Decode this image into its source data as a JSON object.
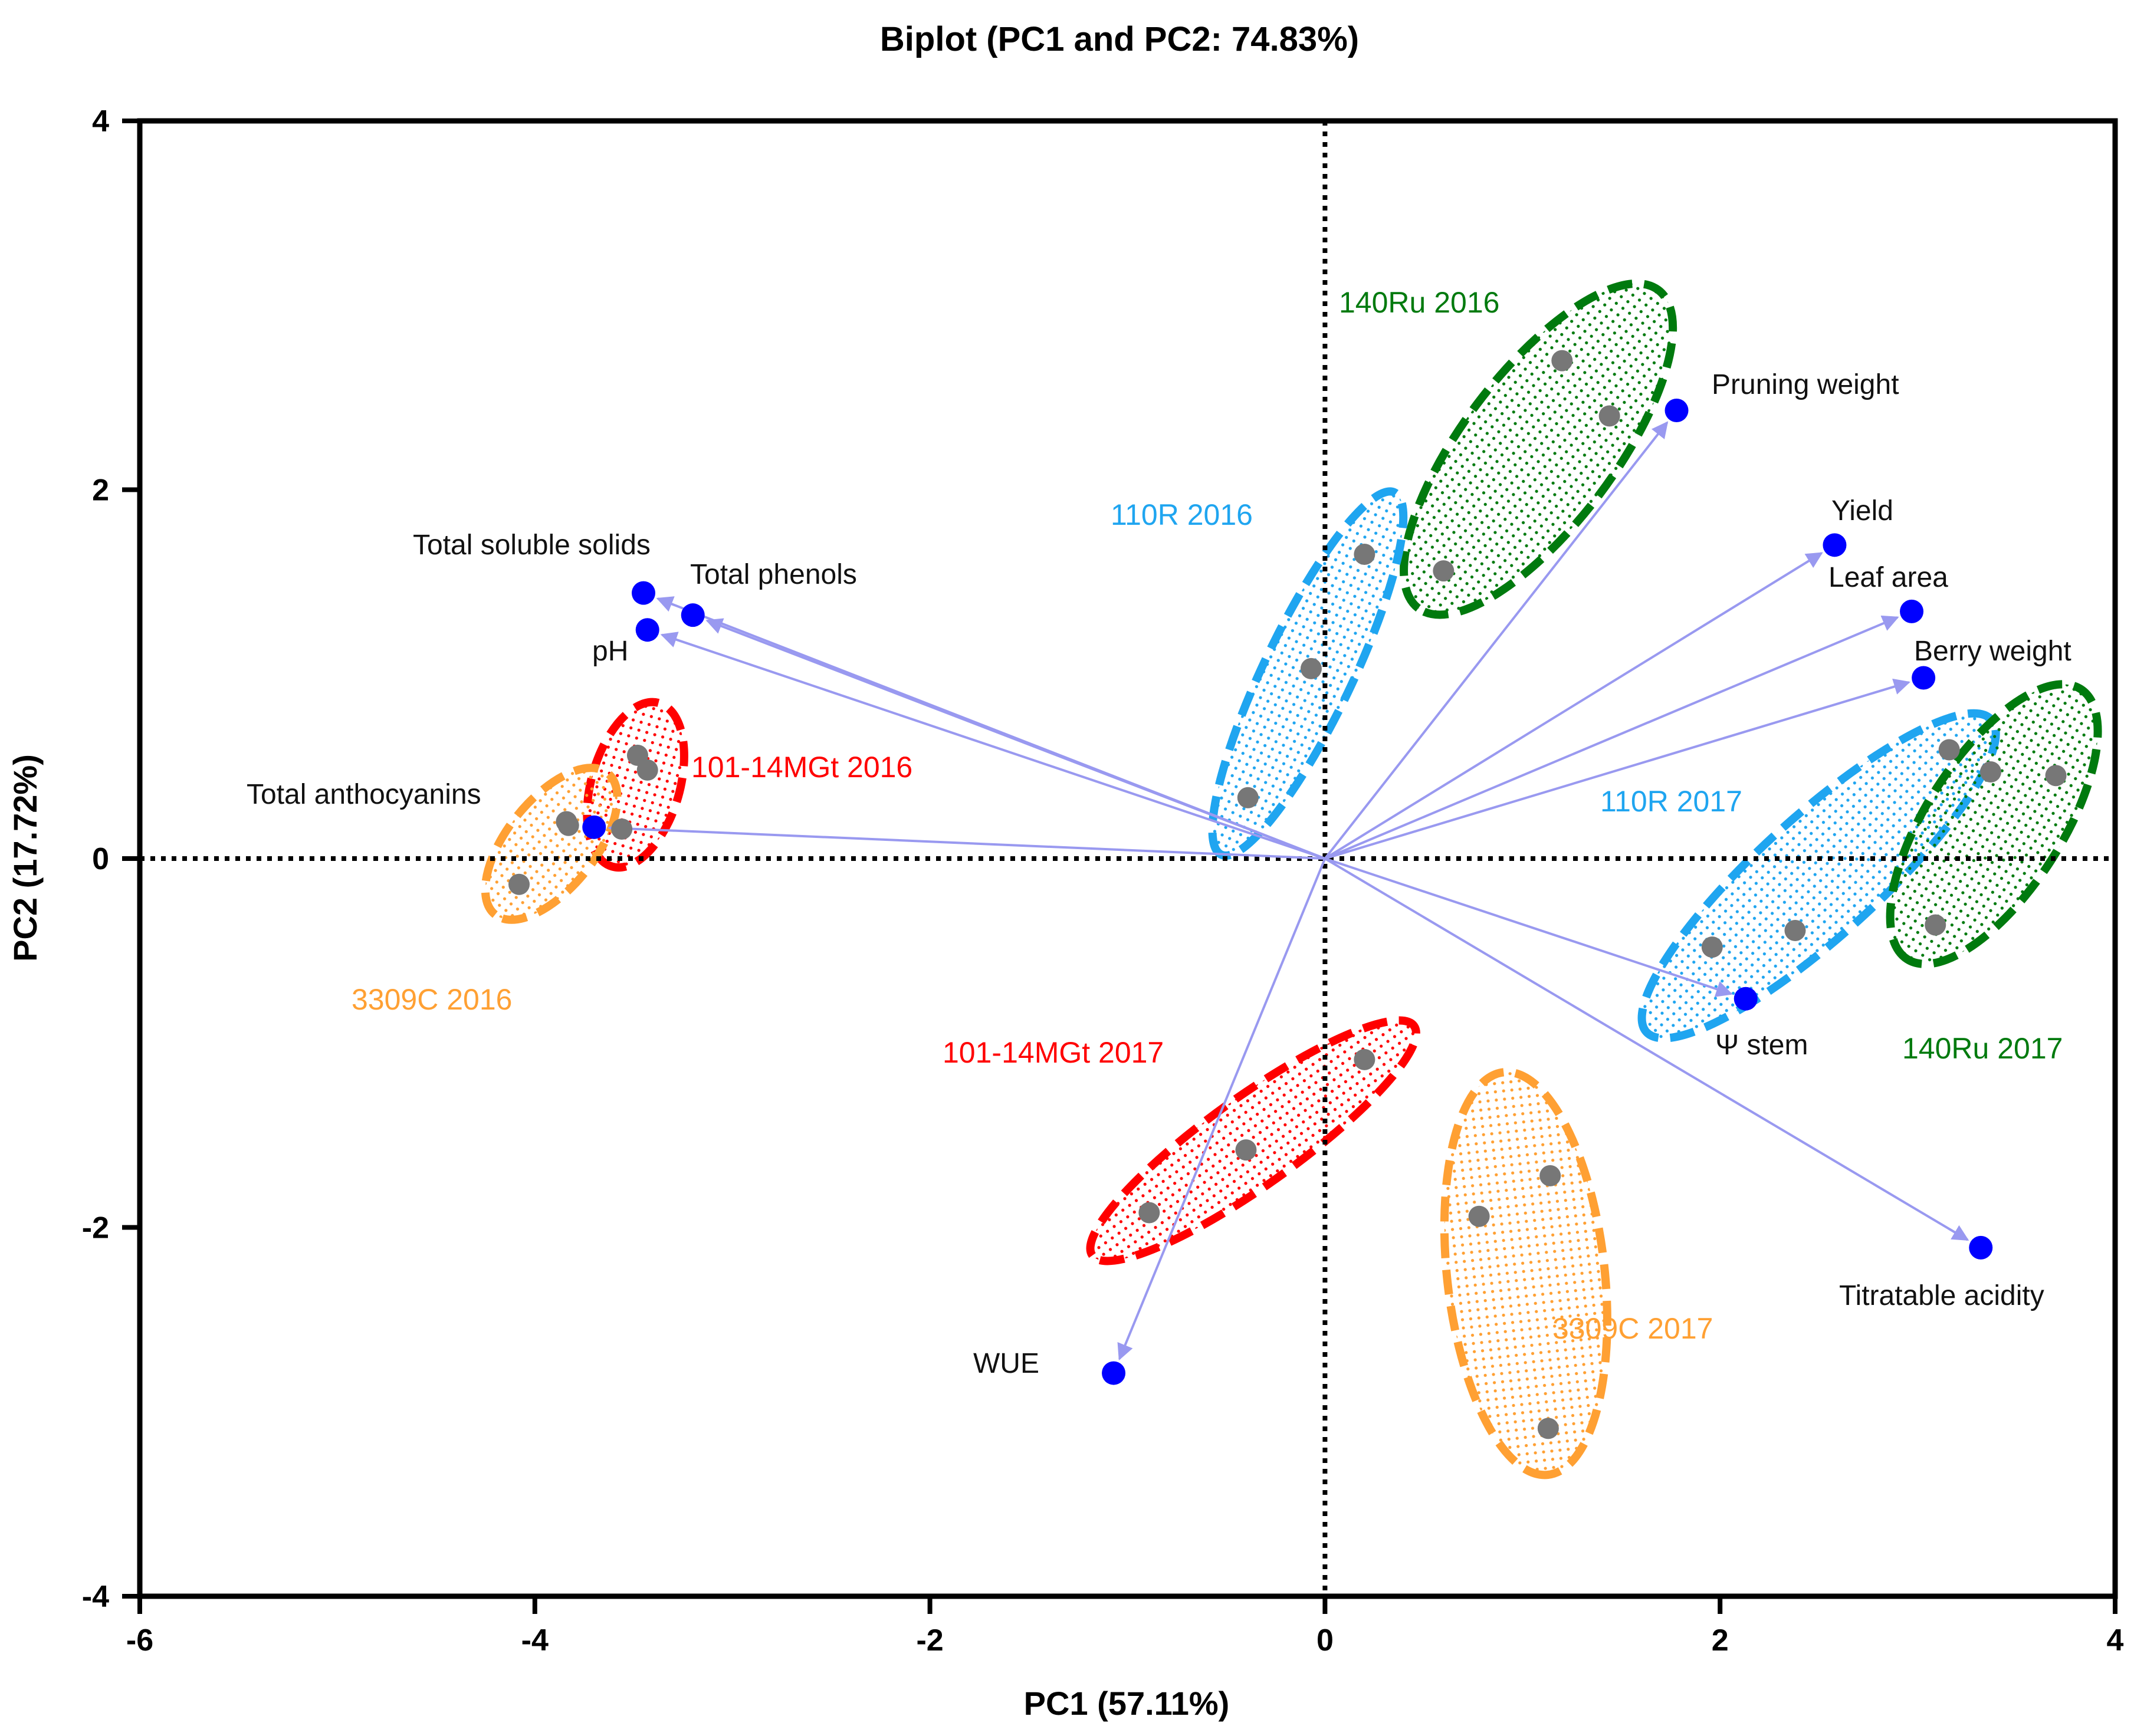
{
  "chart_data": {
    "type": "scatter",
    "subtype": "biplot",
    "title": "Biplot (PC1 and PC2: 74.83%)",
    "xlabel": "PC1 (57.11%)",
    "ylabel": "PC2 (17.72%)",
    "xlim": [
      -6,
      4
    ],
    "ylim": [
      -4,
      4
    ],
    "xticks": [
      -6,
      -4,
      -2,
      0,
      2,
      4
    ],
    "yticks": [
      -4,
      -2,
      0,
      2,
      4
    ],
    "x_tick_labels": [
      "-6",
      "-4",
      "-2",
      "0",
      "2",
      "4"
    ],
    "y_tick_labels": [
      "-4",
      "-2",
      "0",
      "2",
      "4"
    ],
    "grid": false,
    "reference_lines": "dotted lines at x = 0 and y = 0",
    "colors": {
      "axes": "#000000",
      "variable_points": "#0000ff",
      "vector_arrows": "#9999f0",
      "observation_points": "#777777",
      "red": "#ff0000",
      "green": "#007a0e",
      "light_blue": "#1fa5f0",
      "orange": "#ffa033"
    },
    "variables": [
      {
        "label": "Total soluble solids",
        "x": -3.45,
        "y": 1.44
      },
      {
        "label": "Total phenols",
        "x": -3.2,
        "y": 1.32
      },
      {
        "label": "pH",
        "x": -3.43,
        "y": 1.24
      },
      {
        "label": "Total anthocyanins",
        "x": -3.7,
        "y": 0.17
      },
      {
        "label": "Pruning weight",
        "x": 1.78,
        "y": 2.43
      },
      {
        "label": "Yield",
        "x": 2.58,
        "y": 1.7
      },
      {
        "label": "Leaf area",
        "x": 2.97,
        "y": 1.34
      },
      {
        "label": "Berry weight",
        "x": 3.03,
        "y": 0.98
      },
      {
        "label": "Ψ stem",
        "x": 2.13,
        "y": -0.76
      },
      {
        "label": "Titratable acidity",
        "x": 3.32,
        "y": -2.11
      },
      {
        "label": "WUE",
        "x": -1.07,
        "y": -2.79
      }
    ],
    "groups": [
      {
        "name": "140Ru 2016",
        "color": "green",
        "points": [
          [
            1.2,
            2.7
          ],
          [
            1.44,
            2.4
          ],
          [
            0.6,
            1.56
          ]
        ]
      },
      {
        "name": "110R 2016",
        "color": "light_blue",
        "points": [
          [
            0.2,
            1.65
          ],
          [
            -0.07,
            1.03
          ],
          [
            -0.39,
            0.33
          ]
        ]
      },
      {
        "name": "101-14MGt 2016",
        "color": "red",
        "points": [
          [
            -3.48,
            0.56
          ],
          [
            -3.43,
            0.48
          ],
          [
            -3.56,
            0.16
          ]
        ]
      },
      {
        "name": "3309C 2016",
        "color": "orange",
        "points": [
          [
            -3.84,
            0.2
          ],
          [
            -3.83,
            0.18
          ],
          [
            -4.08,
            -0.14
          ]
        ]
      },
      {
        "name": "110R 2017",
        "color": "light_blue",
        "points": [
          [
            3.16,
            0.59
          ],
          [
            2.38,
            -0.39
          ],
          [
            1.96,
            -0.48
          ]
        ]
      },
      {
        "name": "140Ru 2017",
        "color": "green",
        "points": [
          [
            3.37,
            0.47
          ],
          [
            3.7,
            0.45
          ],
          [
            3.09,
            -0.36
          ]
        ]
      },
      {
        "name": "101-14MGt 2017",
        "color": "red",
        "points": [
          [
            0.2,
            -1.09
          ],
          [
            -0.4,
            -1.58
          ],
          [
            -0.89,
            -1.92
          ]
        ]
      },
      {
        "name": "3309C 2017",
        "color": "orange",
        "points": [
          [
            1.14,
            -1.72
          ],
          [
            0.78,
            -1.94
          ],
          [
            1.13,
            -3.09
          ]
        ]
      }
    ]
  }
}
